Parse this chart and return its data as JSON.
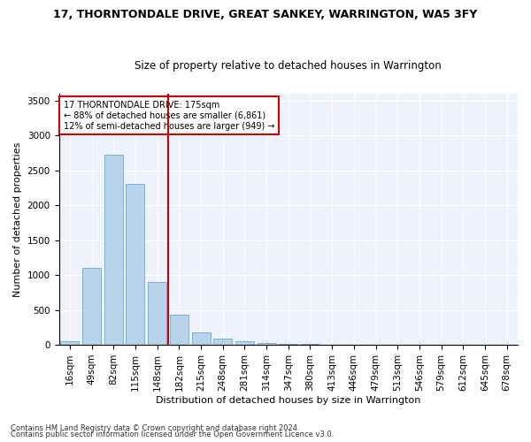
{
  "title": "17, THORNTONDALE DRIVE, GREAT SANKEY, WARRINGTON, WA5 3FY",
  "subtitle": "Size of property relative to detached houses in Warrington",
  "xlabel": "Distribution of detached houses by size in Warrington",
  "ylabel": "Number of detached properties",
  "categories": [
    "16sqm",
    "49sqm",
    "82sqm",
    "115sqm",
    "148sqm",
    "182sqm",
    "215sqm",
    "248sqm",
    "281sqm",
    "314sqm",
    "347sqm",
    "380sqm",
    "413sqm",
    "446sqm",
    "479sqm",
    "513sqm",
    "546sqm",
    "579sqm",
    "612sqm",
    "645sqm",
    "678sqm"
  ],
  "values": [
    50,
    1100,
    2720,
    2300,
    900,
    430,
    175,
    90,
    55,
    30,
    20,
    10,
    5,
    2,
    2,
    1,
    1,
    0,
    0,
    0,
    0
  ],
  "bar_color": "#b8d4ea",
  "bar_edge_color": "#6aaad4",
  "vline_x_index": 5,
  "vline_color": "#cc0000",
  "annotation_text": "17 THORNTONDALE DRIVE: 175sqm\n← 88% of detached houses are smaller (6,861)\n12% of semi-detached houses are larger (949) →",
  "annotation_box_color": "#ffffff",
  "annotation_border_color": "#cc0000",
  "ylim": [
    0,
    3600
  ],
  "yticks": [
    0,
    500,
    1000,
    1500,
    2000,
    2500,
    3000,
    3500
  ],
  "footnote1": "Contains HM Land Registry data © Crown copyright and database right 2024.",
  "footnote2": "Contains public sector information licensed under the Open Government Licence v3.0.",
  "bg_color": "#edf2fb",
  "fig_bg": "#ffffff",
  "title_fontsize": 9,
  "subtitle_fontsize": 8.5,
  "xlabel_fontsize": 8,
  "ylabel_fontsize": 8,
  "tick_fontsize": 7.5,
  "annotation_fontsize": 7,
  "footnote_fontsize": 6
}
